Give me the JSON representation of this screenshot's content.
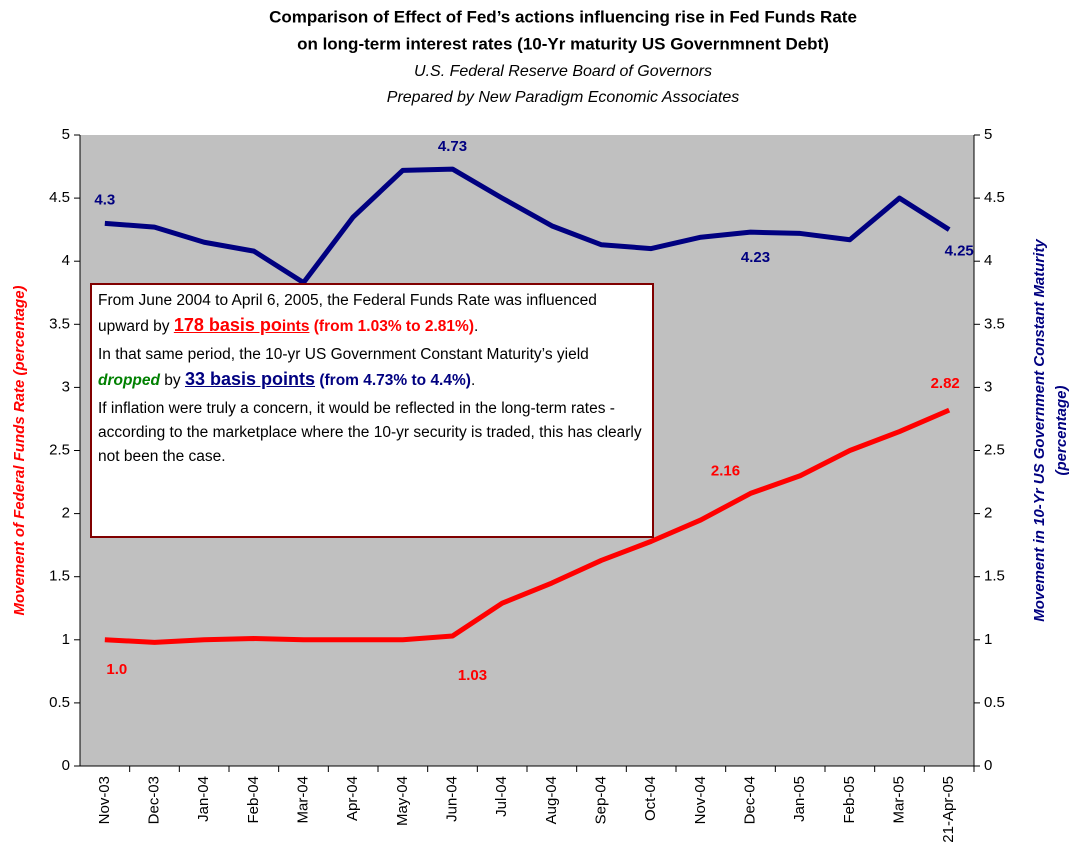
{
  "chart_data": {
    "type": "line",
    "title": [
      "Comparison of Effect of Fed’s actions influencing rise in Fed Funds Rate",
      "on long-term interest rates (10-Yr maturity US Governmnent Debt)"
    ],
    "subtitle": [
      "U.S. Federal Reserve Board of Governors",
      "Prepared by New Paradigm Economic Associates"
    ],
    "ylabel": "Movement of Federal Funds Rate (percentage)",
    "y2label": [
      "Movement in 10-Yr US Government Constant Maturity",
      "(percentage)"
    ],
    "categories": [
      "Nov-03",
      "Dec-03",
      "Jan-04",
      "Feb-04",
      "Mar-04",
      "Apr-04",
      "May-04",
      "Jun-04",
      "Jul-04",
      "Aug-04",
      "Sep-04",
      "Oct-04",
      "Nov-04",
      "Dec-04",
      "Jan-05",
      "Feb-05",
      "Mar-05",
      "21-Apr-05"
    ],
    "series": [
      {
        "color": "#ff0000",
        "axis": "y",
        "values": [
          1.0,
          0.98,
          1.0,
          1.01,
          1.0,
          1.0,
          1.0,
          1.03,
          1.29,
          1.45,
          1.63,
          1.78,
          1.95,
          2.16,
          2.3,
          2.5,
          2.65,
          2.82
        ],
        "value_labels": [
          "1.0",
          null,
          null,
          null,
          null,
          null,
          null,
          "1.03",
          null,
          null,
          null,
          null,
          null,
          "2.16",
          null,
          null,
          null,
          "2.82"
        ]
      },
      {
        "color": "#000080",
        "axis": "y2",
        "values": [
          4.3,
          4.27,
          4.15,
          4.08,
          3.83,
          4.35,
          4.72,
          4.73,
          4.5,
          4.28,
          4.13,
          4.1,
          4.19,
          4.23,
          4.22,
          4.17,
          4.5,
          4.25
        ],
        "value_labels": [
          "4.3",
          null,
          null,
          null,
          null,
          null,
          null,
          "4.73",
          null,
          null,
          null,
          null,
          null,
          "4.23",
          null,
          null,
          null,
          "4.25"
        ]
      }
    ],
    "ylim": [
      0,
      5
    ],
    "yticks": [
      0,
      0.5,
      1,
      1.5,
      2,
      2.5,
      3,
      3.5,
      4,
      4.5,
      5
    ],
    "y2lim": [
      0,
      5
    ],
    "y2ticks": [
      0,
      0.5,
      1,
      1.5,
      2,
      2.5,
      3,
      3.5,
      4,
      4.5,
      5
    ],
    "plot_background": "#c0c0c0",
    "annotation": {
      "paragraphs": [
        [
          {
            "text": "From June 2004 to April 6, 2005, the Federal Funds Rate was influenced upward by ",
            "style": "plain"
          },
          {
            "text": "178 basis po",
            "style": "red-big"
          },
          {
            "text": "ints",
            "style": "red-underline"
          },
          {
            "text": " (from 1.03% to 2.81%)",
            "style": "red"
          },
          {
            "text": ".",
            "style": "plain"
          }
        ],
        [
          {
            "text": "In that same period, the 10-yr US Government Constant Maturity’s yield ",
            "style": "plain"
          },
          {
            "text": "dropped",
            "style": "green"
          },
          {
            "text": " by ",
            "style": "plain"
          },
          {
            "text": "33 basis points",
            "style": "blue-big"
          },
          {
            "text": " (from 4.73% to 4.4%)",
            "style": "blue"
          },
          {
            "text": ".",
            "style": "plain"
          }
        ],
        [
          {
            "text": "If inflation were truly a concern, it would be reflected in the long-term rates - according to the marketplace where the 10-yr security is traded, this has clearly not been the case.",
            "style": "plain"
          }
        ]
      ]
    }
  }
}
